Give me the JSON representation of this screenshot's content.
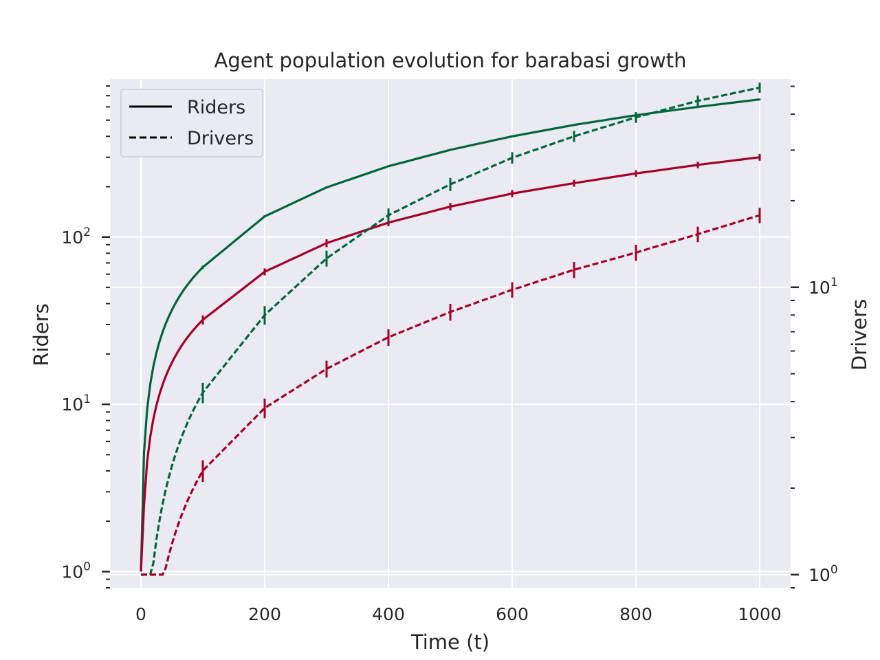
{
  "chart_data": {
    "type": "line",
    "title": "Agent population evolution for barabasi growth",
    "xlabel": "Time (t)",
    "ylabel_left": "Riders",
    "ylabel_right": "Drivers",
    "x_ticks": [
      "0",
      "200",
      "400",
      "600",
      "800",
      "1000"
    ],
    "x_tick_values": [
      0,
      200,
      400,
      600,
      800,
      1000
    ],
    "xlim": [
      -50,
      1050
    ],
    "y_left_scale": "log",
    "y_left_lim": [
      0.8,
      880
    ],
    "y_left_ticks": [
      {
        "base": "10",
        "exp": "0",
        "value": 1
      },
      {
        "base": "10",
        "exp": "1",
        "value": 10
      },
      {
        "base": "10",
        "exp": "2",
        "value": 100
      }
    ],
    "y_right_scale": "log",
    "y_right_lim": [
      0.9,
      53
    ],
    "y_right_ticks": [
      {
        "base": "10",
        "exp": "0",
        "value": 1
      },
      {
        "base": "10",
        "exp": "1",
        "value": 10
      }
    ],
    "grid": true,
    "legend": {
      "placement": "top-left",
      "entries": [
        {
          "label": "Riders",
          "style": "solid"
        },
        {
          "label": "Drivers",
          "style": "dashed"
        }
      ]
    },
    "colors": {
      "green": "#00663a",
      "red": "#a50026",
      "background": "#eaeaf2",
      "grid": "#ffffff",
      "text": "#262626"
    },
    "series": [
      {
        "axis": "left",
        "color": "green",
        "style": "solid",
        "x": [
          0,
          100,
          200,
          300,
          400,
          500,
          600,
          700,
          800,
          900,
          1000
        ],
        "y": [
          1,
          66,
          133,
          198,
          265,
          332,
          400,
          468,
          535,
          600,
          665
        ],
        "err": [
          0.1,
          1.5,
          2,
          3,
          3,
          4,
          4,
          5,
          5,
          6,
          6
        ]
      },
      {
        "axis": "left",
        "color": "red",
        "style": "solid",
        "x": [
          0,
          100,
          200,
          300,
          400,
          500,
          600,
          700,
          800,
          900,
          1000
        ],
        "y": [
          1,
          32,
          62,
          92,
          122,
          152,
          182,
          210,
          240,
          270,
          300
        ],
        "err": [
          0.1,
          2,
          3,
          5,
          6,
          8,
          9,
          10,
          11,
          12,
          14
        ]
      },
      {
        "axis": "right",
        "color": "green",
        "style": "dashed",
        "x": [
          0,
          100,
          200,
          300,
          400,
          500,
          600,
          700,
          800,
          900,
          1000
        ],
        "y": [
          1,
          4.3,
          8.0,
          12.6,
          17.8,
          22.8,
          28.2,
          33.5,
          39.0,
          44.5,
          49.5
        ],
        "err": [
          0.1,
          0.35,
          0.6,
          0.8,
          1.0,
          1.2,
          1.3,
          1.5,
          1.7,
          1.9,
          2.0
        ]
      },
      {
        "axis": "right",
        "color": "red",
        "style": "dashed",
        "x": [
          0,
          100,
          200,
          300,
          400,
          500,
          600,
          700,
          800,
          900,
          1000
        ],
        "y": [
          1,
          2.3,
          3.8,
          5.2,
          6.7,
          8.2,
          9.8,
          11.5,
          13.2,
          15.3,
          17.8
        ],
        "err": [
          0.1,
          0.2,
          0.3,
          0.35,
          0.45,
          0.55,
          0.6,
          0.75,
          0.85,
          0.95,
          1.1
        ]
      }
    ]
  }
}
